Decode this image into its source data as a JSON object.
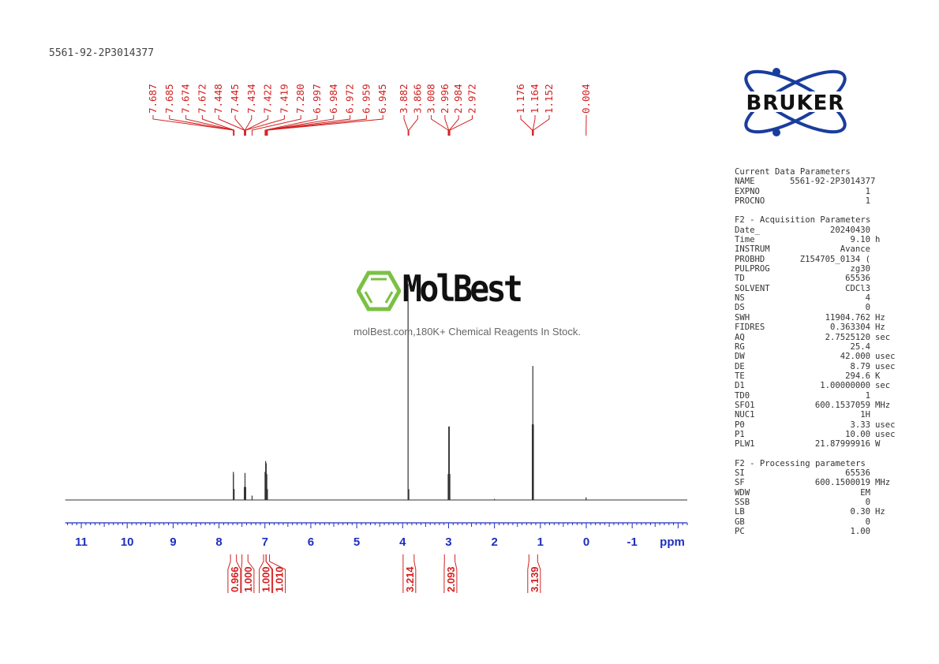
{
  "title": "5561-92-2P3014377",
  "brand_logo": {
    "text": "BRUKER",
    "color": "#1a3d9c"
  },
  "watermark": {
    "name": "MolBest",
    "tagline": "molBest.com,180K+ Chemical Reagents In Stock.",
    "color": "#7ac143"
  },
  "parameters": {
    "sections": [
      {
        "heading": "Current Data Parameters",
        "rows": [
          {
            "key": "NAME",
            "value": "5561-92-2P3014377",
            "unit": ""
          },
          {
            "key": "EXPNO",
            "value": "1",
            "unit": ""
          },
          {
            "key": "PROCNO",
            "value": "1",
            "unit": ""
          }
        ]
      },
      {
        "heading": "F2 - Acquisition Parameters",
        "rows": [
          {
            "key": "Date_",
            "value": "20240430",
            "unit": ""
          },
          {
            "key": "Time",
            "value": "9.10",
            "unit": "h"
          },
          {
            "key": "INSTRUM",
            "value": "Avance",
            "unit": ""
          },
          {
            "key": "PROBHD",
            "value": "Z154705_0134 (",
            "unit": ""
          },
          {
            "key": "PULPROG",
            "value": "zg30",
            "unit": ""
          },
          {
            "key": "TD",
            "value": "65536",
            "unit": ""
          },
          {
            "key": "SOLVENT",
            "value": "CDCl3",
            "unit": ""
          },
          {
            "key": "NS",
            "value": "4",
            "unit": ""
          },
          {
            "key": "DS",
            "value": "0",
            "unit": ""
          },
          {
            "key": "SWH",
            "value": "11904.762",
            "unit": "Hz"
          },
          {
            "key": "FIDRES",
            "value": "0.363304",
            "unit": "Hz"
          },
          {
            "key": "AQ",
            "value": "2.7525120",
            "unit": "sec"
          },
          {
            "key": "RG",
            "value": "25.4",
            "unit": ""
          },
          {
            "key": "DW",
            "value": "42.000",
            "unit": "usec"
          },
          {
            "key": "DE",
            "value": "8.79",
            "unit": "usec"
          },
          {
            "key": "TE",
            "value": "294.6",
            "unit": "K"
          },
          {
            "key": "D1",
            "value": "1.00000000",
            "unit": "sec"
          },
          {
            "key": "TD0",
            "value": "1",
            "unit": ""
          },
          {
            "key": "SFO1",
            "value": "600.1537059",
            "unit": "MHz"
          },
          {
            "key": "NUC1",
            "value": "1H",
            "unit": ""
          },
          {
            "key": "P0",
            "value": "3.33",
            "unit": "usec"
          },
          {
            "key": "P1",
            "value": "10.00",
            "unit": "usec"
          },
          {
            "key": "PLW1",
            "value": "21.87999916",
            "unit": "W"
          }
        ]
      },
      {
        "heading": "F2 - Processing parameters",
        "rows": [
          {
            "key": "SI",
            "value": "65536",
            "unit": ""
          },
          {
            "key": "SF",
            "value": "600.1500019",
            "unit": "MHz"
          },
          {
            "key": "WDW",
            "value": "EM",
            "unit": ""
          },
          {
            "key": "SSB",
            "value": "0",
            "unit": ""
          },
          {
            "key": "LB",
            "value": "0.30",
            "unit": "Hz"
          },
          {
            "key": "GB",
            "value": "0",
            "unit": ""
          },
          {
            "key": "PC",
            "value": "1.00",
            "unit": ""
          }
        ]
      }
    ]
  },
  "chart_data": {
    "type": "line",
    "xlabel": "ppm",
    "xlim": [
      11.35,
      -2.2
    ],
    "x_reversed": true,
    "x_ticks": [
      11,
      10,
      9,
      8,
      7,
      6,
      5,
      4,
      3,
      2,
      1,
      0,
      -1
    ],
    "colors": {
      "spectrum": "#333333",
      "axis": "#1f2fbf",
      "annotation": "#d42020"
    },
    "peaks": [
      {
        "ppm": 7.687,
        "intensity": 0.13
      },
      {
        "ppm": 7.685,
        "intensity": 0.12
      },
      {
        "ppm": 7.674,
        "intensity": 0.05
      },
      {
        "ppm": 7.672,
        "intensity": 0.05
      },
      {
        "ppm": 7.448,
        "intensity": 0.06
      },
      {
        "ppm": 7.445,
        "intensity": 0.06
      },
      {
        "ppm": 7.434,
        "intensity": 0.125
      },
      {
        "ppm": 7.422,
        "intensity": 0.06
      },
      {
        "ppm": 7.419,
        "intensity": 0.06
      },
      {
        "ppm": 7.28,
        "intensity": 0.02
      },
      {
        "ppm": 6.997,
        "intensity": 0.13
      },
      {
        "ppm": 6.984,
        "intensity": 0.18
      },
      {
        "ppm": 6.972,
        "intensity": 0.17
      },
      {
        "ppm": 6.959,
        "intensity": 0.12
      },
      {
        "ppm": 6.945,
        "intensity": 0.05
      },
      {
        "ppm": 3.882,
        "intensity": 1.0
      },
      {
        "ppm": 3.866,
        "intensity": 0.05
      },
      {
        "ppm": 3.008,
        "intensity": 0.12
      },
      {
        "ppm": 2.996,
        "intensity": 0.34
      },
      {
        "ppm": 2.984,
        "intensity": 0.34
      },
      {
        "ppm": 2.972,
        "intensity": 0.12
      },
      {
        "ppm": 2.0,
        "intensity": 0.005
      },
      {
        "ppm": 1.176,
        "intensity": 0.35
      },
      {
        "ppm": 1.164,
        "intensity": 0.62
      },
      {
        "ppm": 1.152,
        "intensity": 0.35
      },
      {
        "ppm": 0.004,
        "intensity": 0.012
      }
    ],
    "peak_label_groups": [
      [
        "7.687",
        "7.685",
        "7.674",
        "7.672",
        "7.448",
        "7.445",
        "7.434",
        "7.422",
        "7.419",
        "7.280",
        "6.997",
        "6.984",
        "6.972",
        "6.959",
        "6.945"
      ],
      [
        "3.882",
        "3.866",
        "3.008",
        "2.996",
        "2.984",
        "2.972"
      ],
      [
        "1.176",
        "1.164",
        "1.152"
      ],
      [
        "0.004"
      ]
    ],
    "integrals": [
      {
        "from": 7.75,
        "to": 7.62,
        "value": "0.966"
      },
      {
        "from": 7.5,
        "to": 7.37,
        "value": "1.000"
      },
      {
        "from": 7.03,
        "to": 6.975,
        "value": "1.000"
      },
      {
        "from": 6.975,
        "to": 6.9,
        "value": "1.010"
      },
      {
        "from": 3.99,
        "to": 3.75,
        "value": "3.214"
      },
      {
        "from": 3.09,
        "to": 2.86,
        "value": "2.093"
      },
      {
        "from": 1.25,
        "to": 1.06,
        "value": "3.139"
      }
    ]
  }
}
